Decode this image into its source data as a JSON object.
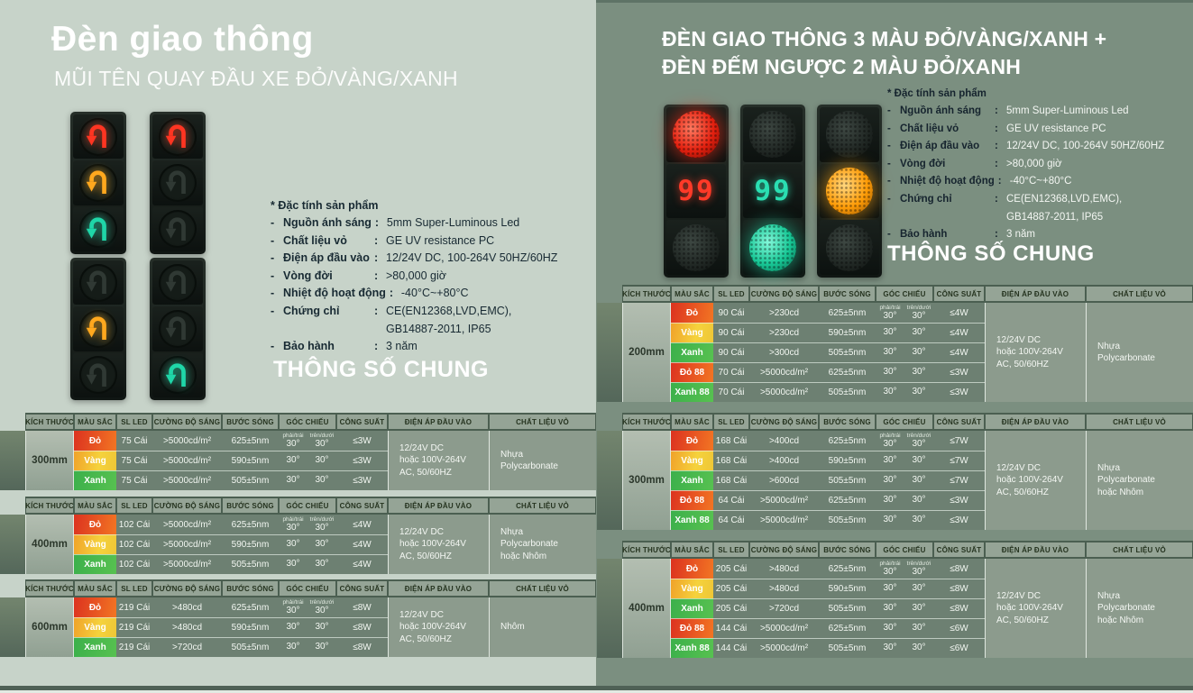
{
  "colors": {
    "left_bg": "#c7d3c9",
    "right_bg": "#7b8f80",
    "signal_red": "#ff3522",
    "signal_yellow": "#ffa81e",
    "signal_green": "#1fd6a8"
  },
  "table_headers": {
    "size": "KÍCH THƯỚC",
    "color": "MÀU SẮC",
    "sl_led": "SL LED",
    "intensity": "CƯỜNG ĐỘ SÁNG",
    "wavelength": "BƯỚC SÓNG",
    "angle": "GÓC CHIẾU",
    "angle_sub1": "phải/trái",
    "angle_sub2": "trên/dưới",
    "power": "CÔNG SUẤT",
    "voltage": "ĐIỆN ÁP ĐẦU VÀO",
    "material": "CHẤT LIỆU VỎ"
  },
  "left_panel": {
    "title": "Đèn giao thông",
    "subtitle": "MŨI TÊN QUAY ĐẦU XE ĐỎ/VÀNG/XANH",
    "specs_title": "* Đặc tính sản phẩm",
    "specs": [
      {
        "label": "Nguồn ánh sáng",
        "value": "5mm Super-Luminous Led"
      },
      {
        "label": "Chất liệu vỏ",
        "value": "GE UV resistance PC"
      },
      {
        "label": "Điện áp đầu vào",
        "value": "12/24V DC, 100-264V 50HZ/60HZ"
      },
      {
        "label": "Vòng đời",
        "value": ">80,000 giờ"
      },
      {
        "label": "Nhiệt độ hoạt động",
        "value": "-40°C~+80°C"
      },
      {
        "label": "Chứng chỉ",
        "value": "CE(EN12368,LVD,EMC),",
        "value2": "GB14887-2011,  IP65"
      },
      {
        "label": "Bảo hành",
        "value": "3 năm"
      }
    ],
    "section_heading": "THÔNG SỐ CHUNG",
    "lights": [
      {
        "sections": [
          {
            "kind": "arrow",
            "color": "red",
            "lit": true
          },
          {
            "kind": "arrow",
            "color": "yellow",
            "lit": true
          },
          {
            "kind": "arrow",
            "color": "green",
            "lit": true
          }
        ]
      },
      {
        "sections": [
          {
            "kind": "arrow",
            "color": "red",
            "lit": true
          },
          {
            "kind": "arrow",
            "color": "yellow",
            "lit": false
          },
          {
            "kind": "arrow",
            "color": "green",
            "lit": false
          }
        ]
      },
      {
        "sections": [
          {
            "kind": "arrow",
            "color": "red",
            "lit": false
          },
          {
            "kind": "arrow",
            "color": "yellow",
            "lit": true
          },
          {
            "kind": "arrow",
            "color": "green",
            "lit": false
          }
        ]
      },
      {
        "sections": [
          {
            "kind": "arrow",
            "color": "red",
            "lit": false
          },
          {
            "kind": "arrow",
            "color": "yellow",
            "lit": false
          },
          {
            "kind": "arrow",
            "color": "green",
            "lit": true
          }
        ]
      }
    ],
    "tables": [
      {
        "size": "300mm",
        "rows": [
          {
            "color": "Đỏ",
            "key": "red",
            "sl": "75 Cái",
            "cd": ">5000cd/m²",
            "nm": "625±5nm",
            "a1": "30°",
            "a2": "30°",
            "w": "≤3W"
          },
          {
            "color": "Vàng",
            "key": "yellow",
            "sl": "75 Cái",
            "cd": ">5000cd/m²",
            "nm": "590±5nm",
            "a1": "30°",
            "a2": "30°",
            "w": "≤3W"
          },
          {
            "color": "Xanh",
            "key": "green",
            "sl": "75 Cái",
            "cd": ">5000cd/m²",
            "nm": "505±5nm",
            "a1": "30°",
            "a2": "30°",
            "w": "≤3W"
          }
        ],
        "voltage": [
          "12/24V DC",
          "hoặc 100V-264V",
          "AC, 50/60HZ"
        ],
        "material": [
          "Nhựa",
          "Polycarbonate"
        ]
      },
      {
        "size": "400mm",
        "rows": [
          {
            "color": "Đỏ",
            "key": "red",
            "sl": "102 Cái",
            "cd": ">5000cd/m²",
            "nm": "625±5nm",
            "a1": "30°",
            "a2": "30°",
            "w": "≤4W"
          },
          {
            "color": "Vàng",
            "key": "yellow",
            "sl": "102 Cái",
            "cd": ">5000cd/m²",
            "nm": "590±5nm",
            "a1": "30°",
            "a2": "30°",
            "w": "≤4W"
          },
          {
            "color": "Xanh",
            "key": "green",
            "sl": "102 Cái",
            "cd": ">5000cd/m²",
            "nm": "505±5nm",
            "a1": "30°",
            "a2": "30°",
            "w": "≤4W"
          }
        ],
        "voltage": [
          "12/24V DC",
          "hoặc 100V-264V",
          "AC, 50/60HZ"
        ],
        "material": [
          "Nhựa",
          "Polycarbonate",
          "hoặc Nhôm"
        ]
      },
      {
        "size": "600mm",
        "rows": [
          {
            "color": "Đỏ",
            "key": "red",
            "sl": "219 Cái",
            "cd": ">480cd",
            "nm": "625±5nm",
            "a1": "30°",
            "a2": "30°",
            "w": "≤8W"
          },
          {
            "color": "Vàng",
            "key": "yellow",
            "sl": "219 Cái",
            "cd": ">480cd",
            "nm": "590±5nm",
            "a1": "30°",
            "a2": "30°",
            "w": "≤8W"
          },
          {
            "color": "Xanh",
            "key": "green",
            "sl": "219 Cái",
            "cd": ">720cd",
            "nm": "505±5nm",
            "a1": "30°",
            "a2": "30°",
            "w": "≤8W"
          }
        ],
        "voltage": [
          "12/24V DC",
          "hoặc 100V-264V",
          "AC, 50/60HZ"
        ],
        "material": [
          "Nhôm"
        ]
      }
    ]
  },
  "right_panel": {
    "title_line1": "ĐÈN GIAO THÔNG 3 MÀU ĐỎ/VÀNG/XANH +",
    "title_line2": "ĐÈN ĐẾM NGƯỢC 2 MÀU ĐỎ/XANH",
    "specs_title": "* Đặc tính sản phẩm",
    "specs": [
      {
        "label": "Nguồn ánh sáng",
        "value": "5mm Super-Luminous Led"
      },
      {
        "label": "Chất liệu vỏ",
        "value": "GE UV resistance PC"
      },
      {
        "label": "Điện áp đầu vào",
        "value": "12/24V DC, 100-264V 50HZ/60HZ"
      },
      {
        "label": "Vòng đời",
        "value": ">80,000 giờ"
      },
      {
        "label": "Nhiệt độ hoạt động",
        "value": "-40°C~+80°C"
      },
      {
        "label": "Chứng chỉ",
        "value": "CE(EN12368,LVD,EMC),",
        "value2": "GB14887-2011, IP65"
      },
      {
        "label": "Bảo hành",
        "value": "3 năm"
      }
    ],
    "section_heading": "THÔNG SỐ CHUNG",
    "lights": [
      {
        "sections": [
          {
            "kind": "ball",
            "color": "red",
            "lit": true
          },
          {
            "kind": "digits",
            "color": "red",
            "lit": true,
            "text": "99"
          },
          {
            "kind": "ball",
            "color": "green",
            "lit": false
          }
        ]
      },
      {
        "sections": [
          {
            "kind": "ball",
            "color": "red",
            "lit": false
          },
          {
            "kind": "digits",
            "color": "green",
            "lit": true,
            "text": "99"
          },
          {
            "kind": "ball",
            "color": "green",
            "lit": true
          }
        ]
      },
      {
        "sections": [
          {
            "kind": "ball",
            "color": "red",
            "lit": false
          },
          {
            "kind": "ball",
            "color": "amber",
            "lit": true
          },
          {
            "kind": "ball",
            "color": "green",
            "lit": false
          }
        ]
      }
    ],
    "tables": [
      {
        "size": "200mm",
        "rows": [
          {
            "color": "Đỏ",
            "key": "red",
            "sl": "90 Cái",
            "cd": ">230cd",
            "nm": "625±5nm",
            "a1": "30°",
            "a2": "30°",
            "w": "≤4W"
          },
          {
            "color": "Vàng",
            "key": "yellow",
            "sl": "90 Cái",
            "cd": ">230cd",
            "nm": "590±5nm",
            "a1": "30°",
            "a2": "30°",
            "w": "≤4W"
          },
          {
            "color": "Xanh",
            "key": "green",
            "sl": "90 Cái",
            "cd": ">300cd",
            "nm": "505±5nm",
            "a1": "30°",
            "a2": "30°",
            "w": "≤4W"
          },
          {
            "color": "Đỏ 88",
            "key": "red",
            "sl": "70 Cái",
            "cd": ">5000cd/m²",
            "nm": "625±5nm",
            "a1": "30°",
            "a2": "30°",
            "w": "≤3W"
          },
          {
            "color": "Xanh 88",
            "key": "green",
            "sl": "70 Cái",
            "cd": ">5000cd/m²",
            "nm": "505±5nm",
            "a1": "30°",
            "a2": "30°",
            "w": "≤3W"
          }
        ],
        "voltage": [
          "12/24V DC",
          "hoặc 100V-264V",
          "AC, 50/60HZ"
        ],
        "material": [
          "Nhựa",
          "Polycarbonate"
        ]
      },
      {
        "size": "300mm",
        "rows": [
          {
            "color": "Đỏ",
            "key": "red",
            "sl": "168 Cái",
            "cd": ">400cd",
            "nm": "625±5nm",
            "a1": "30°",
            "a2": "30°",
            "w": "≤7W"
          },
          {
            "color": "Vàng",
            "key": "yellow",
            "sl": "168 Cái",
            "cd": ">400cd",
            "nm": "590±5nm",
            "a1": "30°",
            "a2": "30°",
            "w": "≤7W"
          },
          {
            "color": "Xanh",
            "key": "green",
            "sl": "168 Cái",
            "cd": ">600cd",
            "nm": "505±5nm",
            "a1": "30°",
            "a2": "30°",
            "w": "≤7W"
          },
          {
            "color": "Đỏ 88",
            "key": "red",
            "sl": "64 Cái",
            "cd": ">5000cd/m²",
            "nm": "625±5nm",
            "a1": "30°",
            "a2": "30°",
            "w": "≤3W"
          },
          {
            "color": "Xanh 88",
            "key": "green",
            "sl": "64 Cái",
            "cd": ">5000cd/m²",
            "nm": "505±5nm",
            "a1": "30°",
            "a2": "30°",
            "w": "≤3W"
          }
        ],
        "voltage": [
          "12/24V DC",
          "hoặc 100V-264V",
          "AC, 50/60HZ"
        ],
        "material": [
          "Nhựa",
          "Polycarbonate",
          "hoặc Nhôm"
        ]
      },
      {
        "size": "400mm",
        "rows": [
          {
            "color": "Đỏ",
            "key": "red",
            "sl": "205 Cái",
            "cd": ">480cd",
            "nm": "625±5nm",
            "a1": "30°",
            "a2": "30°",
            "w": "≤8W"
          },
          {
            "color": "Vàng",
            "key": "yellow",
            "sl": "205 Cái",
            "cd": ">480cd",
            "nm": "590±5nm",
            "a1": "30°",
            "a2": "30°",
            "w": "≤8W"
          },
          {
            "color": "Xanh",
            "key": "green",
            "sl": "205 Cái",
            "cd": ">720cd",
            "nm": "505±5nm",
            "a1": "30°",
            "a2": "30°",
            "w": "≤8W"
          },
          {
            "color": "Đỏ 88",
            "key": "red",
            "sl": "144 Cái",
            "cd": ">5000cd/m²",
            "nm": "625±5nm",
            "a1": "30°",
            "a2": "30°",
            "w": "≤6W"
          },
          {
            "color": "Xanh 88",
            "key": "green",
            "sl": "144 Cái",
            "cd": ">5000cd/m²",
            "nm": "505±5nm",
            "a1": "30°",
            "a2": "30°",
            "w": "≤6W"
          }
        ],
        "voltage": [
          "12/24V DC",
          "hoặc 100V-264V",
          "AC, 50/60HZ"
        ],
        "material": [
          "Nhựa",
          "Polycarbonate",
          "hoặc Nhôm"
        ]
      }
    ]
  }
}
